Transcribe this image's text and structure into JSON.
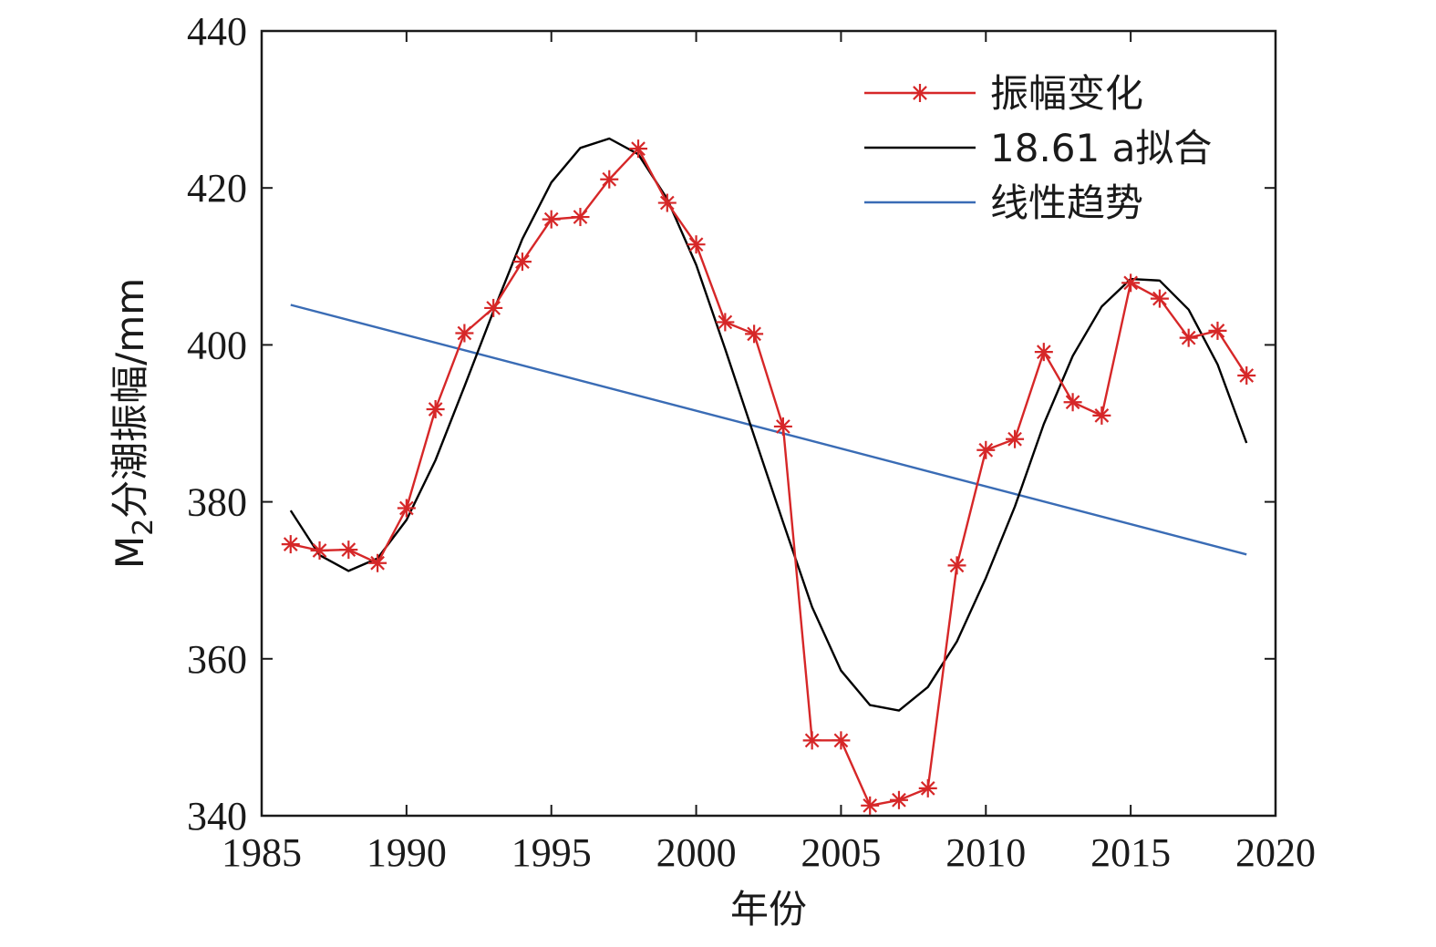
{
  "chart_data": {
    "type": "line",
    "xlabel": "年份",
    "ylabel_main": "M",
    "ylabel_sub": "2",
    "ylabel_rest": "分潮振幅/mm",
    "xlim": [
      1985,
      2020
    ],
    "ylim": [
      340,
      440
    ],
    "xticks": [
      1985,
      1990,
      1995,
      2000,
      2005,
      2010,
      2015,
      2020
    ],
    "yticks": [
      340,
      360,
      380,
      400,
      420,
      440
    ],
    "grid": false,
    "legend_position": "top-right",
    "series": [
      {
        "name": "振幅变化",
        "color": "#d62728",
        "marker": "asterisk",
        "x": [
          1986,
          1987,
          1988,
          1989,
          1990,
          1991,
          1992,
          1993,
          1994,
          1995,
          1996,
          1997,
          1998,
          1999,
          2000,
          2001,
          2002,
          2003,
          2004,
          2005,
          2006,
          2007,
          2008,
          2009,
          2010,
          2011,
          2012,
          2013,
          2014,
          2015,
          2016,
          2017,
          2018,
          2019
        ],
        "y": [
          374.6,
          373.8,
          373.9,
          372.2,
          379.2,
          391.8,
          401.5,
          404.7,
          410.6,
          416.0,
          416.3,
          421.1,
          425.0,
          418.1,
          412.8,
          402.9,
          401.4,
          389.6,
          349.6,
          349.6,
          341.3,
          342.0,
          343.5,
          371.9,
          386.6,
          388.0,
          399.1,
          392.7,
          391.0,
          407.9,
          405.9,
          400.9,
          401.8,
          396.1
        ]
      },
      {
        "name": "18.61 a拟合",
        "color": "#000000",
        "marker": "none",
        "x": [
          1986,
          1987,
          1988,
          1989,
          1990,
          1991,
          1992,
          1993,
          1994,
          1995,
          1996,
          1997,
          1998,
          1999,
          2000,
          2001,
          2002,
          2003,
          2004,
          2005,
          2006,
          2007,
          2008,
          2009,
          2010,
          2011,
          2012,
          2013,
          2014,
          2015,
          2016,
          2017,
          2018,
          2019
        ],
        "y": [
          378.9,
          373.2,
          371.2,
          372.8,
          377.7,
          385.3,
          394.7,
          404.3,
          413.5,
          420.7,
          425.1,
          426.3,
          424.3,
          418.6,
          410.2,
          399.5,
          388.4,
          377.4,
          366.6,
          358.5,
          354.1,
          353.4,
          356.4,
          362.2,
          370.3,
          379.4,
          389.9,
          398.6,
          404.9,
          408.4,
          408.2,
          404.5,
          397.5,
          387.5
        ]
      },
      {
        "name": "线性趋势",
        "color": "#3a6cb5",
        "marker": "none",
        "x": [
          1986,
          2019
        ],
        "y": [
          405.1,
          373.3
        ]
      }
    ]
  }
}
